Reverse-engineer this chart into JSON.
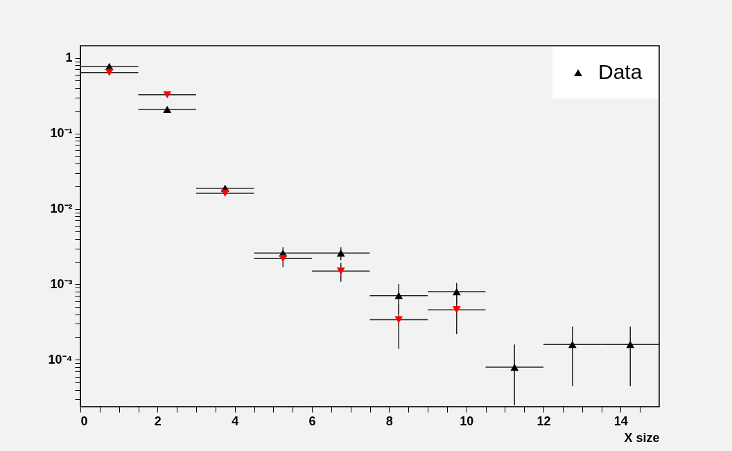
{
  "chart_data": {
    "type": "scatter",
    "xlabel": "X size",
    "log": "y",
    "legend": "top right",
    "marker": "triangle",
    "xlim": [
      0,
      15
    ],
    "ylim": [
      2.4e-05,
      1.45
    ],
    "xticks": [
      0,
      {
        "value": 0.5,
        "label": null
      },
      {
        "value": 1,
        "label": null
      },
      {
        "value": 1.5,
        "label": null
      },
      2,
      {
        "value": 2.5,
        "label": null
      },
      {
        "value": 3,
        "label": null
      },
      {
        "value": 3.5,
        "label": null
      },
      4,
      {
        "value": 4.5,
        "label": null
      },
      {
        "value": 5,
        "label": null
      },
      {
        "value": 5.5,
        "label": null
      },
      6,
      {
        "value": 6.5,
        "label": null
      },
      {
        "value": 7,
        "label": null
      },
      {
        "value": 7.5,
        "label": null
      },
      8,
      {
        "value": 8.5,
        "label": null
      },
      {
        "value": 9,
        "label": null
      },
      {
        "value": 9.5,
        "label": null
      },
      10,
      {
        "value": 10.5,
        "label": null
      },
      {
        "value": 11,
        "label": null
      },
      {
        "value": 11.5,
        "label": null
      },
      12,
      {
        "value": 12.5,
        "label": null
      },
      {
        "value": 13,
        "label": null
      },
      {
        "value": 13.5,
        "label": null
      },
      14,
      {
        "value": 14.5,
        "label": null
      }
    ],
    "yticks": [
      {
        "value": 3e-05,
        "label": null
      },
      {
        "value": 4e-05,
        "label": null
      },
      {
        "value": 5e-05,
        "label": null
      },
      {
        "value": 6e-05,
        "label": null
      },
      {
        "value": 7e-05,
        "label": null
      },
      {
        "value": 8e-05,
        "label": null
      },
      {
        "value": 9e-05,
        "label": null
      },
      {
        "value": 0.0001,
        "label": "10⁻⁴"
      },
      {
        "value": 0.0002,
        "label": null
      },
      {
        "value": 0.0003,
        "label": null
      },
      {
        "value": 0.0004,
        "label": null
      },
      {
        "value": 0.0005,
        "label": null
      },
      {
        "value": 0.0006,
        "label": null
      },
      {
        "value": 0.0007,
        "label": null
      },
      {
        "value": 0.0008,
        "label": null
      },
      {
        "value": 0.0009,
        "label": null
      },
      {
        "value": 0.001,
        "label": "10⁻³"
      },
      {
        "value": 0.002,
        "label": null
      },
      {
        "value": 0.003,
        "label": null
      },
      {
        "value": 0.004,
        "label": null
      },
      {
        "value": 0.005,
        "label": null
      },
      {
        "value": 0.006,
        "label": null
      },
      {
        "value": 0.007,
        "label": null
      },
      {
        "value": 0.008,
        "label": null
      },
      {
        "value": 0.009,
        "label": null
      },
      {
        "value": 0.01,
        "label": "10⁻²"
      },
      {
        "value": 0.02,
        "label": null
      },
      {
        "value": 0.03,
        "label": null
      },
      {
        "value": 0.04,
        "label": null
      },
      {
        "value": 0.05,
        "label": null
      },
      {
        "value": 0.06,
        "label": null
      },
      {
        "value": 0.07,
        "label": null
      },
      {
        "value": 0.08,
        "label": null
      },
      {
        "value": 0.09,
        "label": null
      },
      {
        "value": 0.1,
        "label": "10⁻¹"
      },
      {
        "value": 0.2,
        "label": null
      },
      {
        "value": 0.3,
        "label": null
      },
      {
        "value": 0.4,
        "label": null
      },
      {
        "value": 0.5,
        "label": null
      },
      {
        "value": 0.6,
        "label": null
      },
      {
        "value": 0.7,
        "label": null
      },
      {
        "value": 0.8,
        "label": null
      },
      {
        "value": 0.9,
        "label": null
      },
      1
    ],
    "series": [
      {
        "name": "Data",
        "color": "#000000",
        "x": [
          0.75,
          2.25,
          3.75,
          5.25,
          6.75,
          8.25,
          9.75,
          11.25,
          12.75,
          14.25
        ],
        "values": [
          0.77,
          0.208,
          0.0188,
          0.0026,
          0.0026,
          0.00071,
          0.0008,
          8e-05,
          0.00016,
          0.00016
        ],
        "xerrors": [
          0.75,
          0.75,
          0.75,
          0.75,
          0.75,
          0.75,
          0.75,
          0.75,
          0.75,
          0.75
        ],
        "errors": [
          null,
          null,
          null,
          0.0005,
          0.0005,
          0.0003,
          0.00025,
          [
            2.5e-05,
            0.00016
          ],
          0.000115,
          0.000115
        ]
      },
      {
        "color": "#ff0000",
        "marker": "triangle-down",
        "x": [
          0.75,
          2.25,
          3.75,
          5.25,
          6.75,
          8.25,
          9.75
        ],
        "values": [
          0.64,
          0.325,
          0.0161,
          0.0022,
          0.0015,
          0.00034,
          0.00046
        ],
        "xerrors": [
          0.75,
          0.75,
          0.75,
          0.75,
          0.75,
          0.75,
          0.75
        ],
        "errors": [
          null,
          null,
          null,
          0.0005,
          0.00042,
          0.0002,
          0.00024
        ]
      }
    ]
  }
}
